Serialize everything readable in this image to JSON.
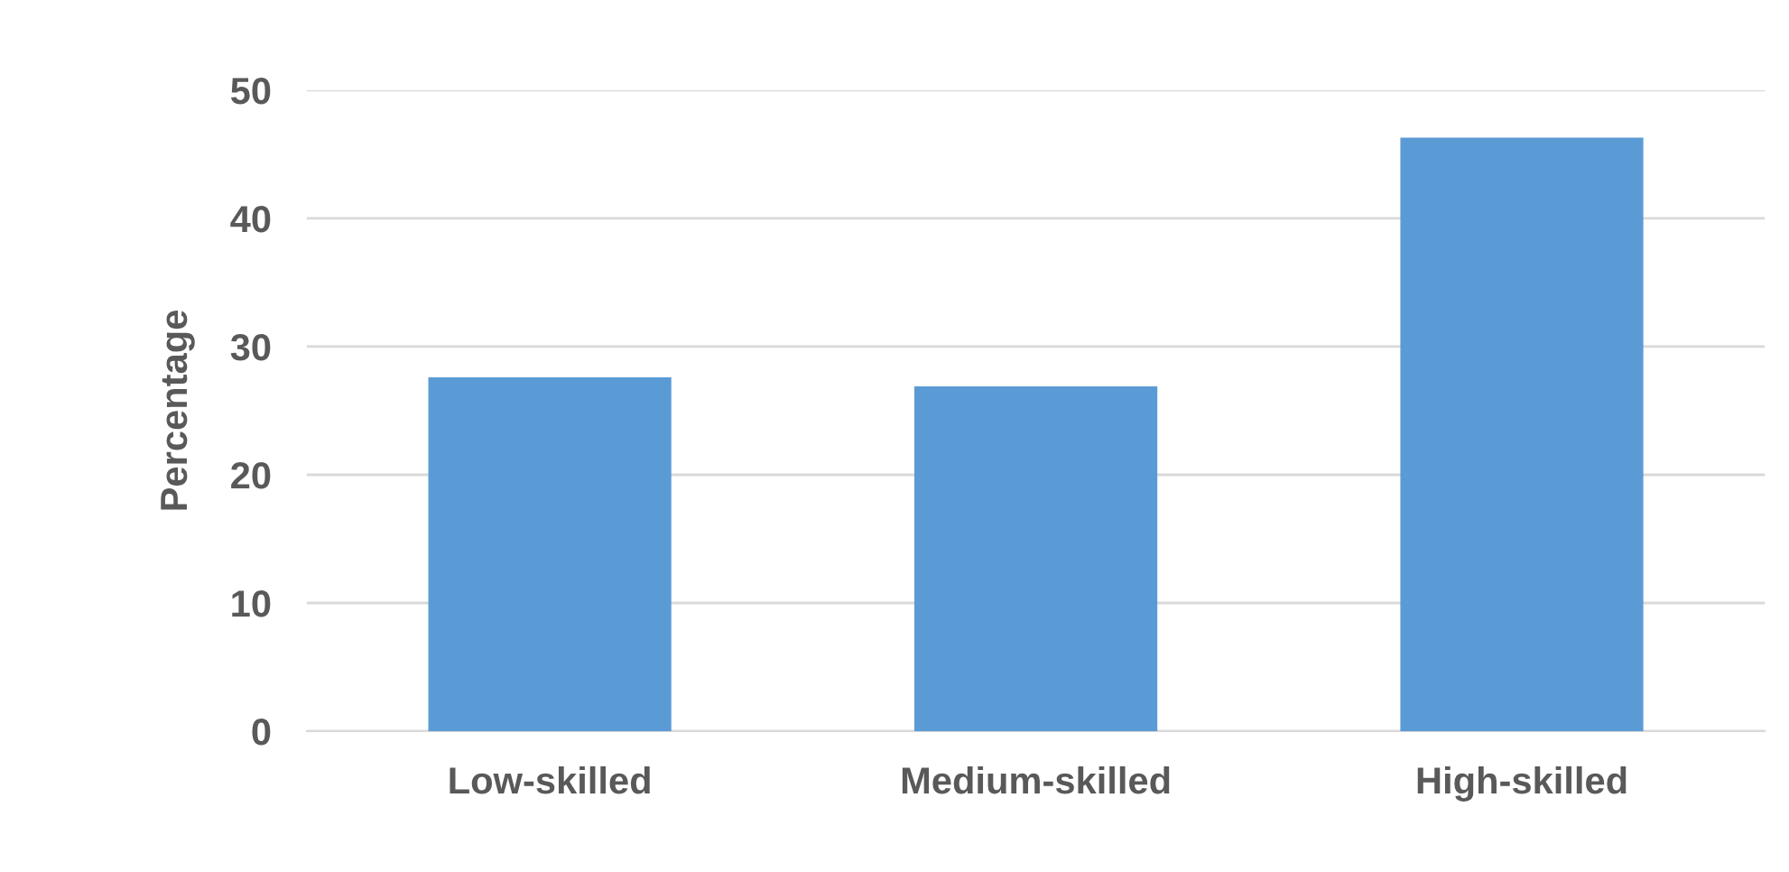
{
  "chart_data": {
    "type": "bar",
    "ylabel": "Percentage",
    "categories": [
      "Low-skilled",
      "Medium-skilled",
      "High-skilled"
    ],
    "values": [
      27.6,
      26.9,
      46.3
    ],
    "color": "#5b9bd5",
    "ylim": [
      0,
      50
    ],
    "yticks": [
      0,
      10,
      20,
      30,
      40,
      50
    ],
    "grid": "y"
  }
}
